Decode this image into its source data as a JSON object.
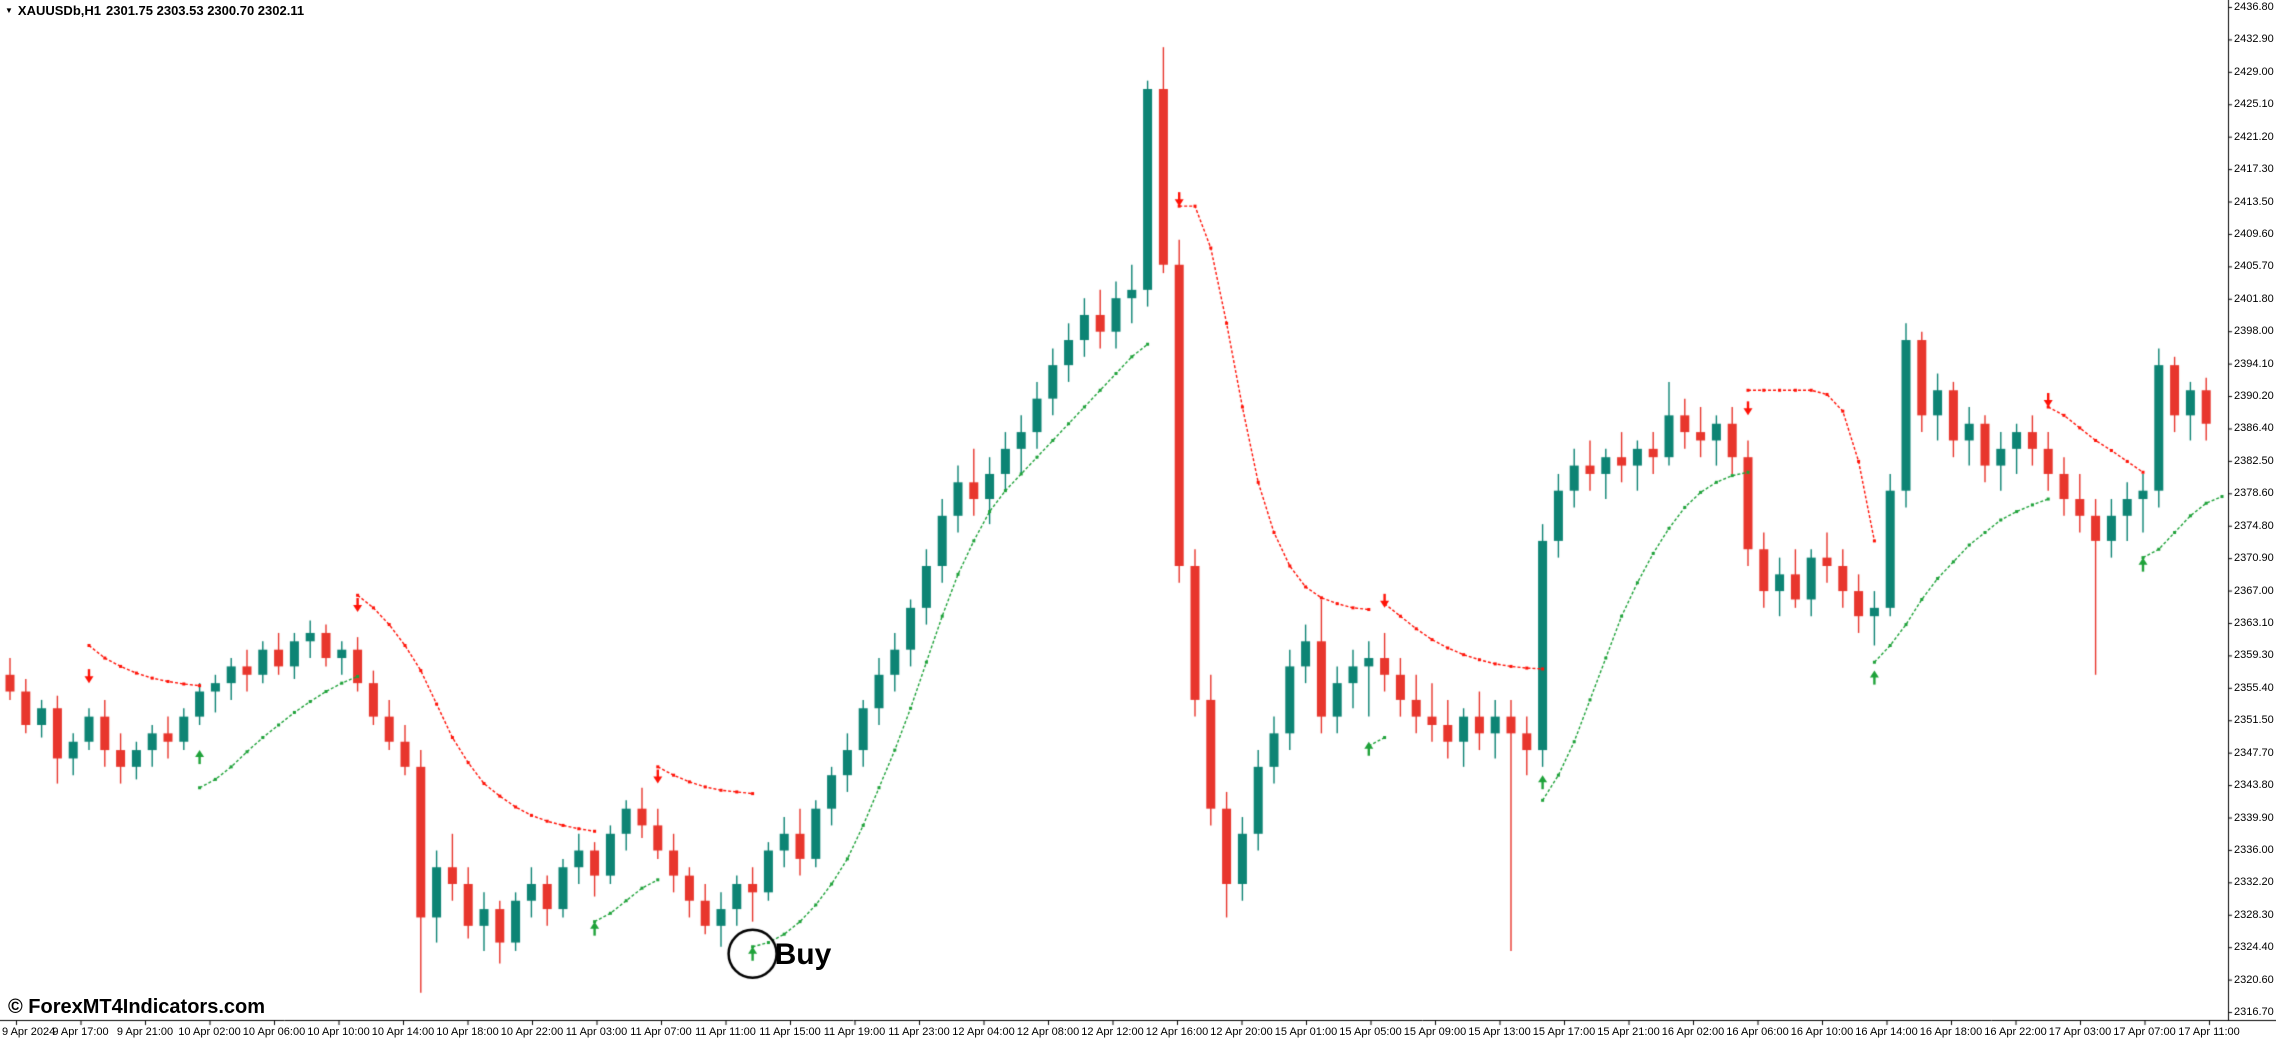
{
  "window": {
    "marker_icon": "▼",
    "symbol_period": "XAUUSDb,H1",
    "ohlc": "2301.75 2303.53 2300.70 2302.11"
  },
  "watermark": "© ForexMT4Indicators.com",
  "annotation": {
    "buy_label": "Buy"
  },
  "colors": {
    "background": "#ffffff",
    "foreground": "#000000",
    "bull_candle": "#0d8474",
    "bear_candle": "#e8362d",
    "signal_green": "#1fa23a",
    "signal_red": "#ff1207"
  },
  "price_axis": {
    "labels": [
      "2436.80",
      "2432.90",
      "2429.00",
      "2425.10",
      "2421.20",
      "2417.30",
      "2413.50",
      "2409.60",
      "2405.70",
      "2401.80",
      "2398.00",
      "2394.10",
      "2390.20",
      "2386.40",
      "2382.50",
      "2378.60",
      "2374.80",
      "2370.90",
      "2367.00",
      "2363.10",
      "2359.30",
      "2355.40",
      "2351.50",
      "2347.70",
      "2343.80",
      "2339.90",
      "2336.00",
      "2332.20",
      "2328.30",
      "2324.40",
      "2320.60",
      "2316.70"
    ]
  },
  "time_axis": {
    "labels": [
      "9 Apr 2024",
      "9 Apr 17:00",
      "9 Apr 21:00",
      "10 Apr 02:00",
      "10 Apr 06:00",
      "10 Apr 10:00",
      "10 Apr 14:00",
      "10 Apr 18:00",
      "10 Apr 22:00",
      "11 Apr 03:00",
      "11 Apr 07:00",
      "11 Apr 11:00",
      "11 Apr 15:00",
      "11 Apr 19:00",
      "11 Apr 23:00",
      "12 Apr 04:00",
      "12 Apr 08:00",
      "12 Apr 12:00",
      "12 Apr 16:00",
      "12 Apr 20:00",
      "15 Apr 01:00",
      "15 Apr 05:00",
      "15 Apr 09:00",
      "15 Apr 13:00",
      "15 Apr 17:00",
      "15 Apr 21:00",
      "16 Apr 02:00",
      "16 Apr 06:00",
      "16 Apr 10:00",
      "16 Apr 14:00",
      "16 Apr 18:00",
      "16 Apr 22:00",
      "17 Apr 03:00",
      "17 Apr 07:00",
      "17 Apr 11:00"
    ]
  },
  "chart_data": {
    "type": "candlestick",
    "symbol": "XAUUSDb",
    "timeframe": "H1",
    "title": "XAUUSDb,H1",
    "price_axis_range": [
      2316.7,
      2436.8
    ],
    "candles": [
      [
        2357,
        2359,
        2354,
        2355
      ],
      [
        2355,
        2356.5,
        2350,
        2351
      ],
      [
        2351,
        2354,
        2349.5,
        2353
      ],
      [
        2353,
        2354.5,
        2344,
        2347
      ],
      [
        2347,
        2350,
        2345,
        2349
      ],
      [
        2349,
        2353,
        2348,
        2352
      ],
      [
        2352,
        2354,
        2346,
        2348
      ],
      [
        2348,
        2350,
        2344,
        2346
      ],
      [
        2346,
        2349,
        2344.5,
        2348
      ],
      [
        2348,
        2351,
        2346,
        2350
      ],
      [
        2350,
        2352,
        2347,
        2349
      ],
      [
        2349,
        2353,
        2348,
        2352
      ],
      [
        2352,
        2356,
        2351,
        2355
      ],
      [
        2355,
        2357,
        2352.5,
        2356
      ],
      [
        2356,
        2359,
        2354,
        2358
      ],
      [
        2358,
        2360,
        2355,
        2357
      ],
      [
        2357,
        2361,
        2356,
        2360
      ],
      [
        2360,
        2362,
        2357,
        2358
      ],
      [
        2358,
        2362,
        2356.5,
        2361
      ],
      [
        2361,
        2363.5,
        2359,
        2362
      ],
      [
        2362,
        2363,
        2358,
        2359
      ],
      [
        2359,
        2361,
        2357,
        2360
      ],
      [
        2360,
        2361.5,
        2355,
        2356
      ],
      [
        2356,
        2357.5,
        2351,
        2352
      ],
      [
        2352,
        2354,
        2348,
        2349
      ],
      [
        2349,
        2351,
        2345,
        2346
      ],
      [
        2346,
        2348,
        2319,
        2328
      ],
      [
        2328,
        2336,
        2325,
        2334
      ],
      [
        2334,
        2338,
        2330,
        2332
      ],
      [
        2332,
        2334,
        2325.5,
        2327
      ],
      [
        2327,
        2331,
        2324,
        2329
      ],
      [
        2329,
        2330,
        2322.5,
        2325
      ],
      [
        2325,
        2331,
        2324,
        2330
      ],
      [
        2330,
        2334,
        2328,
        2332
      ],
      [
        2332,
        2333,
        2327,
        2329
      ],
      [
        2329,
        2335,
        2328,
        2334
      ],
      [
        2334,
        2338,
        2332,
        2336
      ],
      [
        2336,
        2337,
        2330.5,
        2333
      ],
      [
        2333,
        2339,
        2332,
        2338
      ],
      [
        2338,
        2342,
        2336,
        2341
      ],
      [
        2341,
        2343.5,
        2337.5,
        2339
      ],
      [
        2339,
        2341,
        2335,
        2336
      ],
      [
        2336,
        2338,
        2331,
        2333
      ],
      [
        2333,
        2334,
        2328,
        2330
      ],
      [
        2330,
        2332,
        2326,
        2327
      ],
      [
        2327,
        2331,
        2324.5,
        2329
      ],
      [
        2329,
        2333,
        2327,
        2332
      ],
      [
        2332,
        2334,
        2327.5,
        2331
      ],
      [
        2331,
        2337,
        2330,
        2336
      ],
      [
        2336,
        2340,
        2334,
        2338
      ],
      [
        2338,
        2341,
        2333,
        2335
      ],
      [
        2335,
        2342,
        2334,
        2341
      ],
      [
        2341,
        2346,
        2339,
        2345
      ],
      [
        2345,
        2350,
        2343,
        2348
      ],
      [
        2348,
        2354,
        2346,
        2353
      ],
      [
        2353,
        2359,
        2351,
        2357
      ],
      [
        2357,
        2362,
        2355,
        2360
      ],
      [
        2360,
        2366,
        2358,
        2365
      ],
      [
        2365,
        2372,
        2363,
        2370
      ],
      [
        2370,
        2378,
        2368,
        2376
      ],
      [
        2376,
        2382,
        2374,
        2380
      ],
      [
        2380,
        2384,
        2376,
        2378
      ],
      [
        2378,
        2383,
        2375,
        2381
      ],
      [
        2381,
        2386,
        2379,
        2384
      ],
      [
        2384,
        2388,
        2381,
        2386
      ],
      [
        2386,
        2392,
        2384,
        2390
      ],
      [
        2390,
        2396,
        2388,
        2394
      ],
      [
        2394,
        2399,
        2392,
        2397
      ],
      [
        2397,
        2402,
        2395,
        2400
      ],
      [
        2400,
        2403,
        2396,
        2398
      ],
      [
        2398,
        2404,
        2396,
        2402
      ],
      [
        2402,
        2406,
        2399,
        2403
      ],
      [
        2403,
        2428,
        2401,
        2427
      ],
      [
        2427,
        2432,
        2405,
        2406
      ],
      [
        2406,
        2409,
        2368,
        2370
      ],
      [
        2370,
        2372,
        2352,
        2354
      ],
      [
        2354,
        2357,
        2339,
        2341
      ],
      [
        2341,
        2343,
        2328,
        2332
      ],
      [
        2332,
        2340,
        2330,
        2338
      ],
      [
        2338,
        2348,
        2336,
        2346
      ],
      [
        2346,
        2352,
        2344,
        2350
      ],
      [
        2350,
        2360,
        2348,
        2358
      ],
      [
        2358,
        2363,
        2356,
        2361
      ],
      [
        2361,
        2366,
        2350,
        2352
      ],
      [
        2352,
        2358,
        2350,
        2356
      ],
      [
        2356,
        2360,
        2353,
        2358
      ],
      [
        2358,
        2361,
        2352,
        2359
      ],
      [
        2359,
        2362,
        2355,
        2357
      ],
      [
        2357,
        2359,
        2352,
        2354
      ],
      [
        2354,
        2357,
        2350,
        2352
      ],
      [
        2352,
        2356,
        2349,
        2351
      ],
      [
        2351,
        2354,
        2347,
        2349
      ],
      [
        2349,
        2353,
        2346,
        2352
      ],
      [
        2352,
        2355,
        2348,
        2350
      ],
      [
        2350,
        2354,
        2347,
        2352
      ],
      [
        2352,
        2354,
        2324,
        2350
      ],
      [
        2350,
        2352,
        2345,
        2348
      ],
      [
        2348,
        2375,
        2346,
        2373
      ],
      [
        2373,
        2381,
        2371,
        2379
      ],
      [
        2379,
        2384,
        2377,
        2382
      ],
      [
        2382,
        2385,
        2379,
        2381
      ],
      [
        2381,
        2384,
        2378,
        2383
      ],
      [
        2383,
        2386,
        2380,
        2382
      ],
      [
        2382,
        2385,
        2379,
        2384
      ],
      [
        2384,
        2386,
        2381,
        2383
      ],
      [
        2383,
        2392,
        2382,
        2388
      ],
      [
        2388,
        2390,
        2384,
        2386
      ],
      [
        2386,
        2389,
        2383,
        2385
      ],
      [
        2385,
        2388,
        2382,
        2387
      ],
      [
        2387,
        2389,
        2381,
        2383
      ],
      [
        2383,
        2385,
        2370,
        2372
      ],
      [
        2372,
        2374,
        2365,
        2367
      ],
      [
        2367,
        2371,
        2364,
        2369
      ],
      [
        2369,
        2372,
        2365,
        2366
      ],
      [
        2366,
        2372,
        2364,
        2371
      ],
      [
        2371,
        2374,
        2368,
        2370
      ],
      [
        2370,
        2372,
        2365,
        2367
      ],
      [
        2367,
        2369,
        2362,
        2364
      ],
      [
        2364,
        2367,
        2360.5,
        2365
      ],
      [
        2365,
        2381,
        2364,
        2379
      ],
      [
        2379,
        2399,
        2377,
        2397
      ],
      [
        2397,
        2398,
        2386,
        2388
      ],
      [
        2388,
        2393,
        2385,
        2391
      ],
      [
        2391,
        2392,
        2383,
        2385
      ],
      [
        2385,
        2389,
        2382,
        2387
      ],
      [
        2387,
        2388,
        2380,
        2382
      ],
      [
        2382,
        2386,
        2379,
        2384
      ],
      [
        2384,
        2387,
        2381,
        2386
      ],
      [
        2386,
        2388,
        2382,
        2384
      ],
      [
        2384,
        2386,
        2379,
        2381
      ],
      [
        2381,
        2383,
        2376,
        2378
      ],
      [
        2378,
        2381,
        2374,
        2376
      ],
      [
        2376,
        2378,
        2357,
        2373
      ],
      [
        2373,
        2378,
        2371,
        2376
      ],
      [
        2376,
        2380,
        2373,
        2378
      ],
      [
        2378,
        2381,
        2374,
        2379
      ],
      [
        2379,
        2396,
        2377,
        2394
      ],
      [
        2394,
        2395,
        2386,
        2388
      ],
      [
        2388,
        2392,
        2385,
        2391
      ],
      [
        2391,
        2392.5,
        2385,
        2387
      ]
    ],
    "trail_segments": [
      {
        "color": "red",
        "start_index": 5,
        "prices": [
          2360.5,
          2359,
          2358,
          2357.2,
          2356.6,
          2356.2,
          2355.9,
          2355.7
        ]
      },
      {
        "color": "green",
        "start_index": 12,
        "prices": [
          2343.5,
          2344.5,
          2346,
          2347.8,
          2349.5,
          2351,
          2352.5,
          2353.8,
          2355,
          2356,
          2356.8
        ]
      },
      {
        "color": "red",
        "start_index": 22,
        "prices": [
          2366.5,
          2365,
          2363,
          2360.5,
          2357.5,
          2353.5,
          2349.5,
          2346.5,
          2344,
          2342.5,
          2341.2,
          2340.2,
          2339.5,
          2339,
          2338.6,
          2338.3
        ]
      },
      {
        "color": "green",
        "start_index": 37,
        "prices": [
          2327.5,
          2328.5,
          2330,
          2331.5,
          2332.5
        ]
      },
      {
        "color": "red",
        "start_index": 41,
        "prices": [
          2346,
          2345,
          2344.2,
          2343.6,
          2343.2,
          2343,
          2342.8
        ]
      },
      {
        "color": "green",
        "start_index": 47,
        "prices": [
          2324.5,
          2325,
          2326,
          2327.5,
          2329.5,
          2332,
          2335,
          2339,
          2343.5,
          2348,
          2353,
          2358.5,
          2364,
          2369,
          2373,
          2376.5,
          2379,
          2381,
          2383,
          2385,
          2387,
          2389,
          2391,
          2393,
          2395,
          2396.5
        ]
      },
      {
        "color": "red",
        "start_index": 74,
        "prices": [
          2413,
          2413,
          2408,
          2399,
          2389,
          2380,
          2374,
          2370,
          2367.5,
          2366.2,
          2365.5,
          2365,
          2364.8
        ]
      },
      {
        "color": "green",
        "start_index": 86,
        "prices": [
          2348.5,
          2349.5
        ]
      },
      {
        "color": "red",
        "start_index": 87,
        "prices": [
          2365.5,
          2364,
          2362.5,
          2361.2,
          2360.2,
          2359.4,
          2358.8,
          2358.3,
          2358,
          2357.8,
          2357.7
        ]
      },
      {
        "color": "green",
        "start_index": 97,
        "prices": [
          2342,
          2345,
          2349,
          2354,
          2359,
          2364,
          2368,
          2371.5,
          2374.5,
          2377,
          2378.8,
          2380,
          2380.8,
          2381.2
        ]
      },
      {
        "color": "red",
        "start_index": 110,
        "prices": [
          2391,
          2391,
          2391,
          2391,
          2391,
          2390.5,
          2388.5,
          2382.5,
          2373
        ]
      },
      {
        "color": "green",
        "start_index": 118,
        "prices": [
          2358.5,
          2360.5,
          2363,
          2366,
          2368.5,
          2370.5,
          2372.5,
          2374,
          2375.5,
          2376.5,
          2377.3,
          2378
        ]
      },
      {
        "color": "red",
        "start_index": 129,
        "prices": [
          2389,
          2388,
          2386.5,
          2385,
          2383.8,
          2382.5,
          2381.2
        ]
      },
      {
        "color": "green",
        "start_index": 135,
        "prices": [
          2371,
          2372,
          2374,
          2376,
          2377.5,
          2378.3
        ]
      }
    ],
    "arrows": [
      {
        "index": 5,
        "dir": "down",
        "price": 2356
      },
      {
        "index": 12,
        "dir": "up",
        "price": 2348
      },
      {
        "index": 22,
        "dir": "down",
        "price": 2364.5
      },
      {
        "index": 37,
        "dir": "up",
        "price": 2327.5
      },
      {
        "index": 41,
        "dir": "down",
        "price": 2344
      },
      {
        "index": 47,
        "dir": "up",
        "price": 2324.5,
        "circled": true
      },
      {
        "index": 74,
        "dir": "down",
        "price": 2413
      },
      {
        "index": 86,
        "dir": "up",
        "price": 2349
      },
      {
        "index": 87,
        "dir": "down",
        "price": 2365
      },
      {
        "index": 97,
        "dir": "up",
        "price": 2345
      },
      {
        "index": 110,
        "dir": "down",
        "price": 2388
      },
      {
        "index": 118,
        "dir": "up",
        "price": 2357.5
      },
      {
        "index": 129,
        "dir": "down",
        "price": 2389
      },
      {
        "index": 135,
        "dir": "up",
        "price": 2371
      }
    ],
    "buy_signal": {
      "index": 47,
      "price": 2324.5,
      "label": "Buy",
      "circled": true
    }
  }
}
